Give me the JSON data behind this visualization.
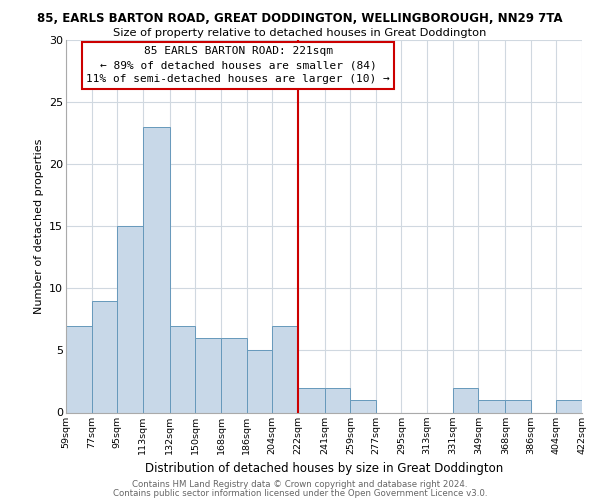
{
  "title": "85, EARLS BARTON ROAD, GREAT DODDINGTON, WELLINGBOROUGH, NN29 7TA",
  "subtitle": "Size of property relative to detached houses in Great Doddington",
  "xlabel": "Distribution of detached houses by size in Great Doddington",
  "ylabel": "Number of detached properties",
  "bar_color": "#c8d8e8",
  "bar_edge_color": "#6699bb",
  "vline_x": 222,
  "vline_color": "#cc0000",
  "bin_edges": [
    59,
    77,
    95,
    113,
    132,
    150,
    168,
    186,
    204,
    222,
    241,
    259,
    277,
    295,
    313,
    331,
    349,
    368,
    386,
    404,
    422
  ],
  "bar_heights": [
    7,
    9,
    15,
    23,
    7,
    6,
    6,
    5,
    7,
    2,
    2,
    1,
    0,
    0,
    0,
    2,
    1,
    1,
    0,
    1
  ],
  "tick_labels": [
    "59sqm",
    "77sqm",
    "95sqm",
    "113sqm",
    "132sqm",
    "150sqm",
    "168sqm",
    "186sqm",
    "204sqm",
    "222sqm",
    "241sqm",
    "259sqm",
    "277sqm",
    "295sqm",
    "313sqm",
    "331sqm",
    "349sqm",
    "368sqm",
    "386sqm",
    "404sqm",
    "422sqm"
  ],
  "ylim": [
    0,
    30
  ],
  "yticks": [
    0,
    5,
    10,
    15,
    20,
    25,
    30
  ],
  "annotation_line1": "85 EARLS BARTON ROAD: 221sqm",
  "annotation_line2": "← 89% of detached houses are smaller (84)",
  "annotation_line3": "11% of semi-detached houses are larger (10) →",
  "annotation_box_color": "#ffffff",
  "annotation_box_edge": "#cc0000",
  "footer1": "Contains HM Land Registry data © Crown copyright and database right 2024.",
  "footer2": "Contains public sector information licensed under the Open Government Licence v3.0.",
  "background_color": "#ffffff",
  "grid_color": "#d0d8e0"
}
